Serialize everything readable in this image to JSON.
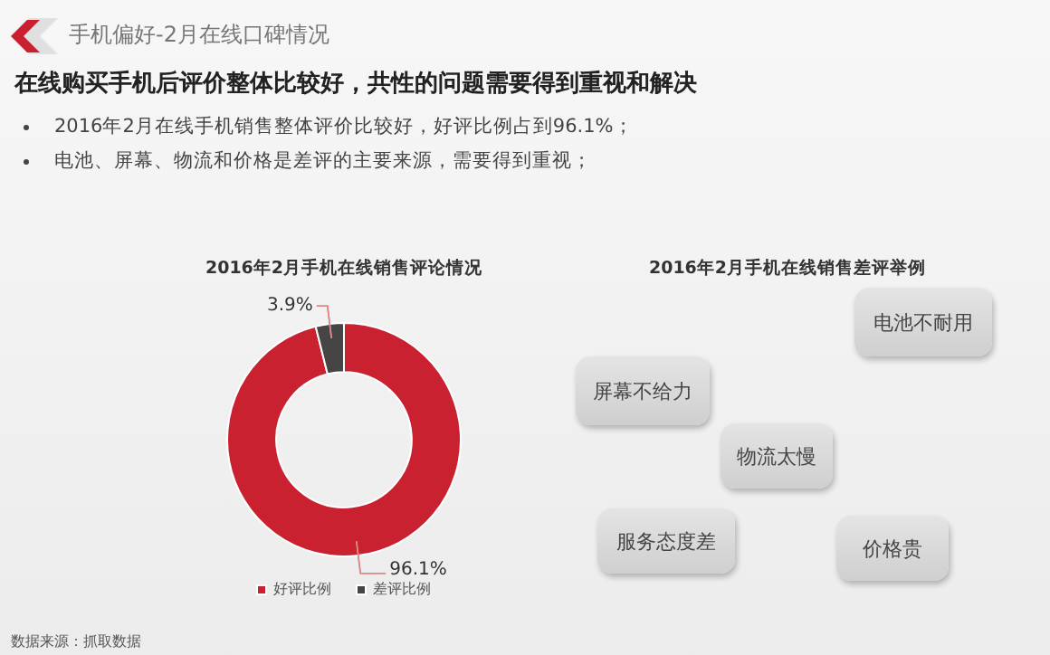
{
  "chart_data": {
    "type": "donut",
    "title": "2016年2月手机在线销售评论情况",
    "categories": [
      "好评比例",
      "差评比例"
    ],
    "values": [
      96.1,
      3.9
    ],
    "colors": [
      "#c9212f",
      "#454545"
    ],
    "value_labels": [
      "96.1%",
      "3.9%"
    ],
    "legend": "bottom",
    "annotations": [
      "手机偏好-2月在线口碑情况",
      "在线购买手机后评价整体比较好，共性的问题需要得到重视和解决",
      "2016年2月在线手机销售整体评价比较好，好评比例占到96.1%；",
      "电池、屏幕、物流和价格是差评的主要来源，需要得到重视；",
      "2016年2月手机在线销售差评举例",
      "屏幕不给力",
      "电池不耐用",
      "物流太慢",
      "服务态度差",
      "价格贵",
      "数据来源：抓取数据"
    ]
  }
}
